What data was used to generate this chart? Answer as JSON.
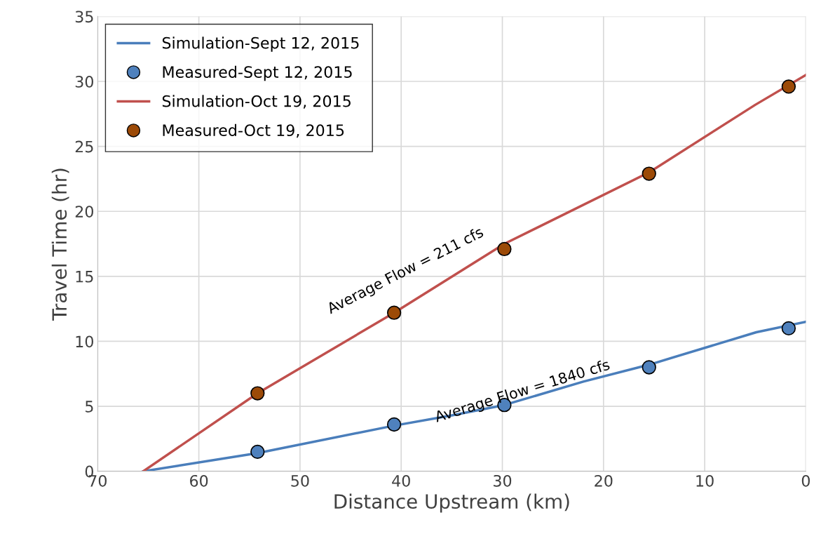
{
  "chart_data": {
    "type": "line",
    "xlabel": "Distance Upstream (km)",
    "ylabel": "Travel Time (hr)",
    "xlim": [
      70,
      0
    ],
    "xticks": [
      70,
      60,
      50,
      40,
      30,
      20,
      10,
      0
    ],
    "ylim": [
      0,
      35
    ],
    "yticks": [
      0,
      5,
      10,
      15,
      20,
      25,
      30,
      35
    ],
    "grid": true,
    "legend": "top left",
    "series": [
      {
        "name": "Simulation-Sept 12, 2015",
        "color": "#4a7ebb",
        "marker": "none",
        "x": [
          65.5,
          54.2,
          40.8,
          35,
          29.8,
          22,
          15.5,
          4.9,
          0
        ],
        "values": [
          0,
          1.4,
          3.5,
          4.3,
          5.1,
          6.9,
          8.2,
          10.7,
          11.5
        ]
      },
      {
        "name": "Measured-Sept 12, 2015",
        "type": "scatter",
        "color": "#4f81bd",
        "marker": "circle",
        "x": [
          54.2,
          40.7,
          29.8,
          15.5,
          1.7
        ],
        "values": [
          1.5,
          3.6,
          5.1,
          8.0,
          11.0
        ]
      },
      {
        "name": "Simulation-Oct 19, 2015",
        "color": "#c0504d",
        "marker": "none",
        "x": [
          65.5,
          54.2,
          40.7,
          29.8,
          15.5,
          5,
          0
        ],
        "values": [
          0,
          6.0,
          12.2,
          17.5,
          23.0,
          28.2,
          30.5
        ]
      },
      {
        "name": "Measured-Oct 19, 2015",
        "type": "scatter",
        "color": "#9c4a07",
        "marker": "circle",
        "x": [
          54.2,
          40.7,
          29.8,
          15.5,
          1.7
        ],
        "values": [
          6.0,
          12.2,
          17.1,
          22.9,
          29.6
        ]
      }
    ],
    "annotations": [
      "Average Flow = 211 cfs",
      "Average Flow = 1840 cfs"
    ]
  }
}
